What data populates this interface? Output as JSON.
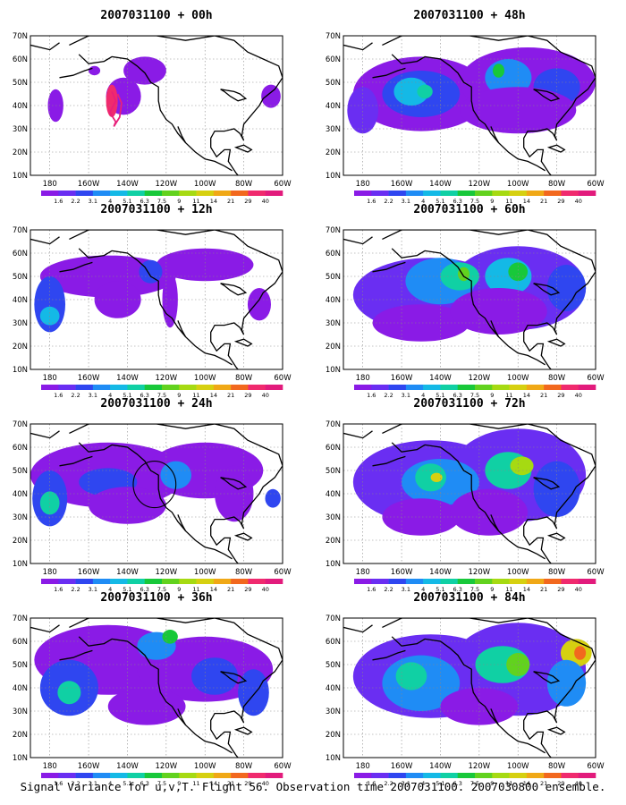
{
  "figure": {
    "caption": "Signal Variance for u,v,T. Flight 56. Observation time 2007031100. 2007030800 ensemble."
  },
  "map": {
    "lat_labels": [
      "70N",
      "60N",
      "50N",
      "40N",
      "30N",
      "20N",
      "10N"
    ],
    "lon_labels": [
      "180",
      "160W",
      "140W",
      "120W",
      "100W",
      "80W",
      "60W"
    ],
    "colorbar_labels": [
      "1.6",
      "2.2",
      "3.1",
      "4",
      "5.1",
      "6.3",
      "7.5",
      "9",
      "11",
      "14",
      "21",
      "29",
      "40"
    ],
    "colorbar_colors": [
      "#8a1be6",
      "#6a2ef2",
      "#2f46f0",
      "#1f8cf5",
      "#14b9e6",
      "#10d0a4",
      "#18c83a",
      "#62d21e",
      "#a6da12",
      "#d6d010",
      "#f0a816",
      "#f2681e",
      "#f02a6e",
      "#e21b7c"
    ],
    "lat_range": [
      10,
      70
    ],
    "lon_range": [
      -190,
      -60
    ]
  },
  "panels": [
    {
      "title": "2007031100 + 00h"
    },
    {
      "title": "2007031100 + 48h"
    },
    {
      "title": "2007031100 + 12h"
    },
    {
      "title": "2007031100 + 60h"
    },
    {
      "title": "2007031100 + 24h"
    },
    {
      "title": "2007031100 + 72h"
    },
    {
      "title": "2007031100 + 36h"
    },
    {
      "title": "2007031100 + 84h"
    }
  ]
}
